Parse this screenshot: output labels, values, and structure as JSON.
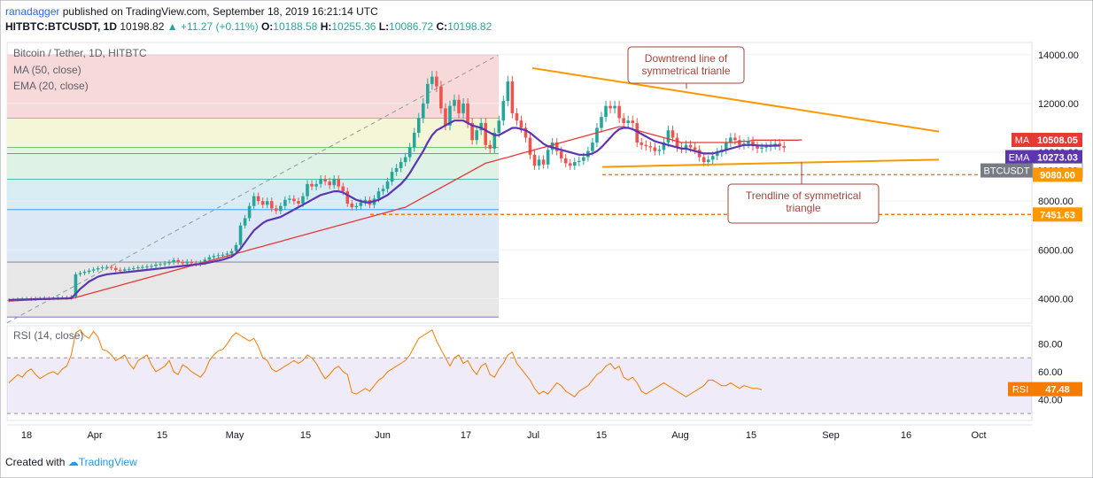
{
  "header": {
    "user": "ranadagger",
    "published": "published on TradingView.com, September 18, 2019 16:21:14 UTC",
    "symbol": "HITBTC:BTCUSDT, 1D",
    "last": "10198.82",
    "change": "+11.27 (+0.11%)",
    "o_label": "O:",
    "o": "10188.58",
    "h_label": "H:",
    "h": "10255.36",
    "l_label": "L:",
    "l": "10086.72",
    "c_label": "C:",
    "c": "10198.82"
  },
  "legend": {
    "title": "Bitcoin / Tether, 1D, HITBTC",
    "ma": "MA (50, close)",
    "ema": "EMA (20, close)",
    "rsi": "RSI (14, close)"
  },
  "footer": {
    "created_with": "Created with",
    "brand": "TradingView"
  },
  "colors": {
    "candle_up": "#26a69a",
    "candle_down": "#ef5350",
    "ma": "#e53935",
    "ema": "#5e35b1",
    "rsi": "#f57c00",
    "trendline": "#ff9800",
    "support": "#f57c00"
  },
  "chart_data": {
    "type": "candlestick",
    "price_axis": {
      "ticks": [
        "14000.00",
        "12000.00",
        "10000.00",
        "8000.00",
        "6000.00",
        "4000.00"
      ],
      "range": [
        3000,
        14500
      ]
    },
    "rsi_axis": {
      "ticks": [
        "80.00",
        "60.00",
        "40.00"
      ],
      "range": [
        25,
        93
      ],
      "bands": [
        30,
        70
      ]
    },
    "x_labels": [
      "18",
      "Apr",
      "15",
      "May",
      "15",
      "Jun",
      "17",
      "Jul",
      "15",
      "Aug",
      "15",
      "Sep",
      "16",
      "Oct"
    ],
    "price_labels": [
      {
        "name": "MA",
        "value": "10508.05"
      },
      {
        "name": "EMA",
        "value": "10273.03"
      },
      {
        "name": "BTCUSDT",
        "value": "10198.82"
      },
      {
        "name": "",
        "value": "9080.00"
      },
      {
        "name": "",
        "value": "7451.63"
      }
    ],
    "rsi_label": {
      "name": "RSI",
      "value": "47.48"
    },
    "support_levels": [
      9080.0,
      7451.63
    ],
    "annotations": [
      "Downtrend line of symmetrical trianle",
      "Trendline of symmetrical triangle"
    ],
    "fib_levels": [
      14000,
      11400,
      10200,
      9950,
      8900,
      7650,
      5500,
      3250
    ],
    "close": [
      3950,
      3960,
      3975,
      3990,
      4000,
      3980,
      4010,
      4020,
      4030,
      4010,
      4020,
      4040,
      4050,
      4030,
      4080,
      5000,
      5050,
      5100,
      5150,
      5200,
      5250,
      5280,
      5300,
      5260,
      5180,
      5150,
      5200,
      5220,
      5250,
      5280,
      5300,
      5320,
      5340,
      5400,
      5420,
      5450,
      5500,
      5580,
      5500,
      5450,
      5520,
      5460,
      5420,
      5480,
      5600,
      5700,
      5750,
      5780,
      5800,
      5850,
      5950,
      6200,
      7000,
      7300,
      7800,
      8200,
      8000,
      7850,
      8000,
      7700,
      7600,
      7800,
      8050,
      8100,
      8000,
      7900,
      8200,
      8700,
      8600,
      8700,
      8900,
      8800,
      8650,
      8900,
      8600,
      8400,
      7900,
      7750,
      7800,
      7950,
      8050,
      7850,
      8100,
      8400,
      8500,
      8800,
      9200,
      9350,
      9600,
      9800,
      10200,
      10800,
      11400,
      12000,
      12800,
      13100,
      12700,
      11800,
      11100,
      11900,
      12150,
      11600,
      12000,
      11200,
      10500,
      10900,
      11200,
      10300,
      10150,
      10800,
      11300,
      12100,
      12900,
      11600,
      11300,
      11000,
      10600,
      9900,
      9450,
      9700,
      9500,
      10100,
      10400,
      10050,
      9750,
      9550,
      9450,
      9600,
      9650,
      9800,
      10050,
      10400,
      11000,
      11450,
      11900,
      11800,
      11900,
      11400,
      11200,
      11300,
      11200,
      10400,
      10300,
      10250,
      10200,
      10050,
      10100,
      10400,
      10900,
      10600,
      10200,
      10150,
      10300,
      10200,
      10100,
      9800,
      9600,
      9700,
      9850,
      10000,
      10100,
      10400,
      10600,
      10500,
      10300,
      10350,
      10450,
      10250,
      10150,
      10200,
      10230,
      10300,
      10350,
      10250,
      10190
    ],
    "ma50": [
      3900,
      3910,
      3920,
      3930,
      3940,
      3950,
      3960,
      3965,
      3970,
      3975,
      3980,
      3985,
      3990,
      3995,
      4000,
      4050,
      4100,
      4150,
      4200,
      4250,
      4300,
      4350,
      4400,
      4450,
      4500,
      4550,
      4600,
      4650,
      4700,
      4750,
      4800,
      4850,
      4900,
      4950,
      5000,
      5050,
      5100,
      5150,
      5200,
      5250,
      5300,
      5350,
      5400,
      5450,
      5500,
      5550,
      5600,
      5650,
      5700,
      5750,
      5800,
      5850,
      5900,
      5950,
      6000,
      6050,
      6100,
      6150,
      6200,
      6250,
      6300,
      6350,
      6400,
      6450,
      6500,
      6550,
      6600,
      6650,
      6700,
      6750,
      6800,
      6850,
      6900,
      6950,
      7000,
      7050,
      7100,
      7150,
      7200,
      7250,
      7300,
      7350,
      7400,
      7450,
      7500,
      7550,
      7600,
      7650,
      7700,
      7750,
      7850,
      7950,
      8050,
      8150,
      8250,
      8350,
      8450,
      8550,
      8650,
      8750,
      8850,
      8950,
      9050,
      9150,
      9250,
      9350,
      9450,
      9550,
      9600,
      9650,
      9700,
      9750,
      9800,
      9850,
      9900,
      9950,
      10000,
      10050,
      10100,
      10150,
      10200,
      10250,
      10300,
      10350,
      10400,
      10450,
      10500,
      10550,
      10600,
      10650,
      10700,
      10750,
      10800,
      10850,
      10900,
      10950,
      11000,
      11050,
      11050,
      11000,
      10950,
      10900,
      10850,
      10800,
      10750,
      10700,
      10650,
      10600,
      10550,
      10500,
      10450,
      10400,
      10400,
      10400,
      10400,
      10400,
      10400,
      10400,
      10400,
      10400,
      10400,
      10400,
      10400,
      10400,
      10450,
      10450,
      10450,
      10500,
      10500,
      10500,
      10500,
      10500,
      10500,
      10500,
      10500,
      10500,
      10500,
      10500,
      10508
    ],
    "ema20": [
      3950,
      3955,
      3960,
      3965,
      3970,
      3975,
      3980,
      3985,
      3990,
      3995,
      4000,
      4005,
      4010,
      4015,
      4020,
      4200,
      4400,
      4550,
      4700,
      4800,
      4900,
      4950,
      5000,
      5020,
      5040,
      5060,
      5080,
      5100,
      5120,
      5140,
      5160,
      5180,
      5200,
      5220,
      5240,
      5260,
      5280,
      5300,
      5320,
      5340,
      5360,
      5380,
      5400,
      5420,
      5440,
      5480,
      5520,
      5560,
      5600,
      5660,
      5720,
      5850,
      6050,
      6300,
      6550,
      6800,
      6950,
      7100,
      7200,
      7250,
      7300,
      7350,
      7450,
      7550,
      7650,
      7750,
      7850,
      7950,
      8050,
      8150,
      8250,
      8300,
      8350,
      8400,
      8400,
      8350,
      8250,
      8150,
      8050,
      8000,
      7950,
      7950,
      8000,
      8050,
      8150,
      8250,
      8400,
      8550,
      8700,
      8900,
      9150,
      9450,
      9750,
      10050,
      10400,
      10700,
      10900,
      11000,
      11100,
      11200,
      11300,
      11300,
      11300,
      11200,
      11100,
      11050,
      11000,
      10900,
      10800,
      10700,
      10700,
      10800,
      10900,
      11000,
      11000,
      10950,
      10900,
      10800,
      10650,
      10500,
      10350,
      10250,
      10200,
      10150,
      10100,
      10050,
      10000,
      9950,
      9900,
      9900,
      9900,
      9950,
      10050,
      10200,
      10400,
      10600,
      10800,
      10950,
      11000,
      11000,
      10950,
      10850,
      10750,
      10650,
      10550,
      10450,
      10400,
      10350,
      10300,
      10250,
      10200,
      10150,
      10150,
      10100,
      10050,
      10000,
      9950,
      9950,
      9950,
      10000,
      10050,
      10100,
      10150,
      10200,
      10250,
      10300,
      10300,
      10300,
      10280,
      10275,
      10270,
      10270,
      10273,
      10273
    ],
    "rsi": [
      52,
      55,
      58,
      56,
      60,
      62,
      58,
      55,
      57,
      59,
      60,
      58,
      62,
      64,
      72,
      88,
      90,
      86,
      84,
      89,
      85,
      76,
      75,
      72,
      68,
      70,
      72,
      66,
      62,
      68,
      70,
      72,
      65,
      60,
      62,
      64,
      68,
      60,
      58,
      65,
      63,
      60,
      58,
      56,
      60,
      68,
      72,
      75,
      76,
      80,
      85,
      88,
      86,
      84,
      82,
      84,
      78,
      70,
      68,
      62,
      60,
      62,
      64,
      66,
      68,
      66,
      68,
      72,
      70,
      66,
      60,
      55,
      58,
      62,
      64,
      60,
      58,
      45,
      44,
      46,
      48,
      46,
      50,
      54,
      56,
      60,
      62,
      64,
      66,
      68,
      72,
      78,
      84,
      86,
      88,
      90,
      82,
      76,
      70,
      64,
      70,
      72,
      66,
      68,
      62,
      58,
      64,
      66,
      58,
      56,
      62,
      66,
      72,
      74,
      66,
      62,
      58,
      54,
      48,
      44,
      46,
      44,
      48,
      52,
      50,
      46,
      44,
      42,
      46,
      48,
      50,
      54,
      58,
      60,
      64,
      66,
      62,
      64,
      56,
      54,
      56,
      52,
      46,
      44,
      46,
      48,
      50,
      52,
      50,
      48,
      46,
      44,
      42,
      44,
      46,
      48,
      50,
      54,
      54,
      52,
      50,
      50,
      52,
      50,
      48,
      50,
      49,
      48,
      48,
      47
    ]
  }
}
